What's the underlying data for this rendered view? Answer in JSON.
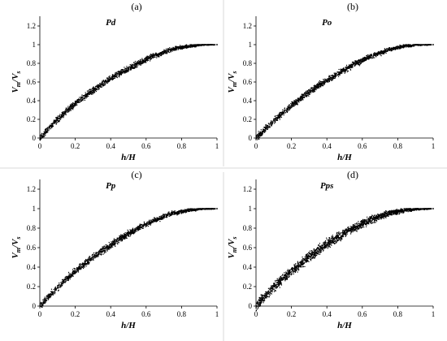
{
  "chart_data": [
    {
      "type": "scatter",
      "panel": "(a)",
      "title": "Pd",
      "xlabel": "h/H",
      "ylabel_base": "V",
      "ylabel_sub1": "m",
      "ylabel_mid": "/V",
      "ylabel_sub2": "s",
      "xlim": [
        0,
        1
      ],
      "ylim": [
        0,
        1.2
      ],
      "xticks": [
        "0",
        "0.2",
        "0.4",
        "0.6",
        "0.8",
        "1"
      ],
      "yticks": [
        "0",
        "0.2",
        "0.4",
        "0.6",
        "0.8",
        "1",
        "1.2"
      ],
      "grid": false,
      "color": "#000000",
      "series": [
        {
          "x": [
            0.01,
            0.03,
            0.05,
            0.08,
            0.1,
            0.13,
            0.15,
            0.18,
            0.2,
            0.23,
            0.25,
            0.28,
            0.3,
            0.33,
            0.35,
            0.38,
            0.4,
            0.43,
            0.45,
            0.48,
            0.5,
            0.53,
            0.55,
            0.58,
            0.6,
            0.63,
            0.65,
            0.68,
            0.7,
            0.73,
            0.75,
            0.78,
            0.8,
            0.83,
            0.85,
            0.88,
            0.9,
            0.93,
            0.95,
            0.98
          ],
          "y": [
            0.02,
            0.06,
            0.1,
            0.16,
            0.2,
            0.25,
            0.29,
            0.33,
            0.37,
            0.41,
            0.44,
            0.48,
            0.51,
            0.55,
            0.57,
            0.61,
            0.64,
            0.67,
            0.69,
            0.72,
            0.74,
            0.77,
            0.8,
            0.82,
            0.84,
            0.87,
            0.88,
            0.9,
            0.92,
            0.94,
            0.95,
            0.97,
            0.97,
            0.98,
            0.99,
            0.99,
            1.0,
            1.0,
            1.0,
            1.0
          ]
        }
      ]
    },
    {
      "type": "scatter",
      "panel": "(b)",
      "title": "Po",
      "xlabel": "h/H",
      "ylabel_base": "V",
      "ylabel_sub1": "m",
      "ylabel_mid": "/V",
      "ylabel_sub2": "s",
      "xlim": [
        0,
        1
      ],
      "ylim": [
        0,
        1.2
      ],
      "xticks": [
        "0",
        "0.2",
        "0.4",
        "0.6",
        "0.8",
        "1"
      ],
      "yticks": [
        "0",
        "0.2",
        "0.4",
        "0.6",
        "0.8",
        "1",
        "1.2"
      ],
      "grid": false,
      "color": "#000000",
      "series": [
        {
          "x": [
            0.01,
            0.03,
            0.05,
            0.08,
            0.1,
            0.13,
            0.15,
            0.18,
            0.2,
            0.23,
            0.25,
            0.28,
            0.3,
            0.33,
            0.35,
            0.38,
            0.4,
            0.43,
            0.45,
            0.48,
            0.5,
            0.53,
            0.55,
            0.58,
            0.6,
            0.63,
            0.65,
            0.68,
            0.7,
            0.73,
            0.75,
            0.78,
            0.8,
            0.83,
            0.85,
            0.88,
            0.9,
            0.93,
            0.95,
            0.98
          ],
          "y": [
            0.02,
            0.05,
            0.09,
            0.14,
            0.18,
            0.23,
            0.27,
            0.31,
            0.35,
            0.39,
            0.42,
            0.46,
            0.49,
            0.53,
            0.56,
            0.59,
            0.62,
            0.65,
            0.68,
            0.71,
            0.73,
            0.76,
            0.79,
            0.81,
            0.83,
            0.86,
            0.88,
            0.9,
            0.91,
            0.93,
            0.95,
            0.96,
            0.97,
            0.98,
            0.99,
            0.99,
            1.0,
            1.0,
            1.0,
            1.0
          ]
        }
      ]
    },
    {
      "type": "scatter",
      "panel": "(c)",
      "title": "Pp",
      "xlabel": "h/H",
      "ylabel_base": "V",
      "ylabel_sub1": "m",
      "ylabel_mid": "/V",
      "ylabel_sub2": "s",
      "xlim": [
        0,
        1
      ],
      "ylim": [
        0,
        1.2
      ],
      "xticks": [
        "0",
        "0.2",
        "0.4",
        "0.6",
        "0.8",
        "1"
      ],
      "yticks": [
        "0",
        "0.2",
        "0.4",
        "0.6",
        "0.8",
        "1",
        "1.2"
      ],
      "grid": false,
      "color": "#000000",
      "series": [
        {
          "x": [
            0.01,
            0.03,
            0.05,
            0.08,
            0.1,
            0.13,
            0.15,
            0.18,
            0.2,
            0.23,
            0.25,
            0.28,
            0.3,
            0.33,
            0.35,
            0.38,
            0.4,
            0.43,
            0.45,
            0.48,
            0.5,
            0.53,
            0.55,
            0.58,
            0.6,
            0.63,
            0.65,
            0.68,
            0.7,
            0.73,
            0.75,
            0.78,
            0.8,
            0.83,
            0.85,
            0.88,
            0.9,
            0.93,
            0.95,
            0.98
          ],
          "y": [
            0.02,
            0.06,
            0.1,
            0.15,
            0.19,
            0.24,
            0.28,
            0.32,
            0.36,
            0.4,
            0.43,
            0.47,
            0.5,
            0.54,
            0.57,
            0.6,
            0.63,
            0.66,
            0.69,
            0.72,
            0.74,
            0.77,
            0.8,
            0.82,
            0.84,
            0.87,
            0.88,
            0.9,
            0.92,
            0.94,
            0.95,
            0.96,
            0.97,
            0.98,
            0.99,
            0.99,
            1.0,
            1.0,
            1.0,
            1.0
          ]
        }
      ]
    },
    {
      "type": "scatter",
      "panel": "(d)",
      "title": "Pps",
      "xlabel": "h/H",
      "ylabel_base": "V",
      "ylabel_sub1": "m",
      "ylabel_mid": "/V",
      "ylabel_sub2": "s",
      "xlim": [
        0,
        1
      ],
      "ylim": [
        0,
        1.2
      ],
      "xticks": [
        "0",
        "0.2",
        "0.4",
        "0.6",
        "0.8",
        "1"
      ],
      "yticks": [
        "0",
        "0.2",
        "0.4",
        "0.6",
        "0.8",
        "1",
        "1.2"
      ],
      "grid": false,
      "color": "#000000",
      "series": [
        {
          "x": [
            0.01,
            0.03,
            0.05,
            0.08,
            0.1,
            0.13,
            0.15,
            0.18,
            0.2,
            0.23,
            0.25,
            0.28,
            0.3,
            0.33,
            0.35,
            0.38,
            0.4,
            0.43,
            0.45,
            0.48,
            0.5,
            0.53,
            0.55,
            0.58,
            0.6,
            0.63,
            0.65,
            0.68,
            0.7,
            0.73,
            0.75,
            0.78,
            0.8,
            0.83,
            0.85,
            0.88,
            0.9,
            0.93,
            0.95,
            0.98
          ],
          "y": [
            0.02,
            0.06,
            0.1,
            0.15,
            0.19,
            0.24,
            0.28,
            0.32,
            0.36,
            0.4,
            0.43,
            0.47,
            0.51,
            0.54,
            0.57,
            0.61,
            0.64,
            0.67,
            0.7,
            0.72,
            0.75,
            0.78,
            0.8,
            0.82,
            0.85,
            0.87,
            0.89,
            0.91,
            0.92,
            0.94,
            0.95,
            0.97,
            0.97,
            0.98,
            0.99,
            0.99,
            1.0,
            1.0,
            1.0,
            1.0
          ]
        }
      ]
    }
  ]
}
